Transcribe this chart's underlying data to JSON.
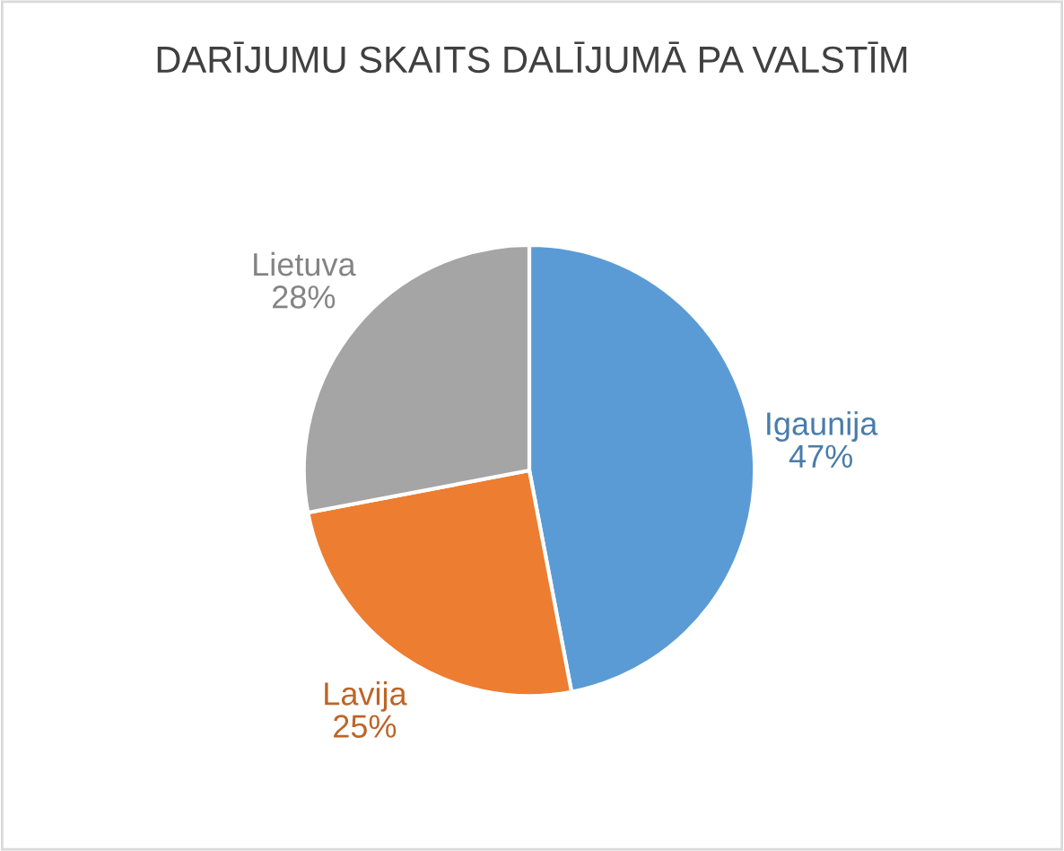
{
  "chart_data": {
    "type": "pie",
    "title": "DARĪJUMU SKAITS DALĪJUMĀ PA VALSTĪM",
    "categories": [
      "Igaunija",
      "Lavija",
      "Lietuva"
    ],
    "values": [
      47,
      25,
      28
    ],
    "colors": [
      "#5b9bd5",
      "#ed7d31",
      "#a5a5a5"
    ],
    "value_labels": [
      "47%",
      "25%",
      "28%"
    ]
  }
}
